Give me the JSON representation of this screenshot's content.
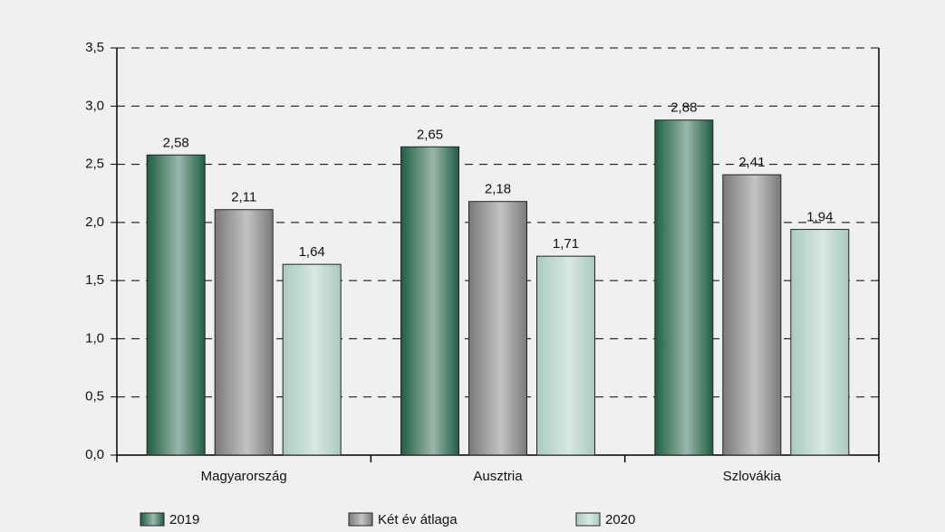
{
  "chart_data": {
    "type": "bar",
    "categories": [
      "Magyarország",
      "Ausztria",
      "Szlovákia"
    ],
    "series": [
      {
        "name": "2019",
        "color": "#1f5e44",
        "values": [
          2.58,
          2.65,
          2.88
        ],
        "value_labels": [
          "2,58",
          "2,65",
          "2,88"
        ]
      },
      {
        "name": "Két év átlaga",
        "color": "#7a7a7a",
        "values": [
          2.11,
          2.18,
          2.41
        ],
        "value_labels": [
          "2,11",
          "2,18",
          "2,41"
        ]
      },
      {
        "name": "2020",
        "color": "#a9cbbd",
        "values": [
          1.64,
          1.71,
          1.94
        ],
        "value_labels": [
          "1,64",
          "1,71",
          "1,94"
        ]
      }
    ],
    "ylim": [
      0,
      3.5
    ],
    "yticks": [
      {
        "value": 0,
        "label": "0,0"
      },
      {
        "value": 0.5,
        "label": "0,5"
      },
      {
        "value": 1,
        "label": "1,0"
      },
      {
        "value": 1.5,
        "label": "1,5"
      },
      {
        "value": 2,
        "label": "2,0"
      },
      {
        "value": 2.5,
        "label": "2,5"
      },
      {
        "value": 3,
        "label": "3,0"
      },
      {
        "value": 3.5,
        "label": "3,5"
      }
    ],
    "grid": true,
    "legend": "bottom"
  }
}
